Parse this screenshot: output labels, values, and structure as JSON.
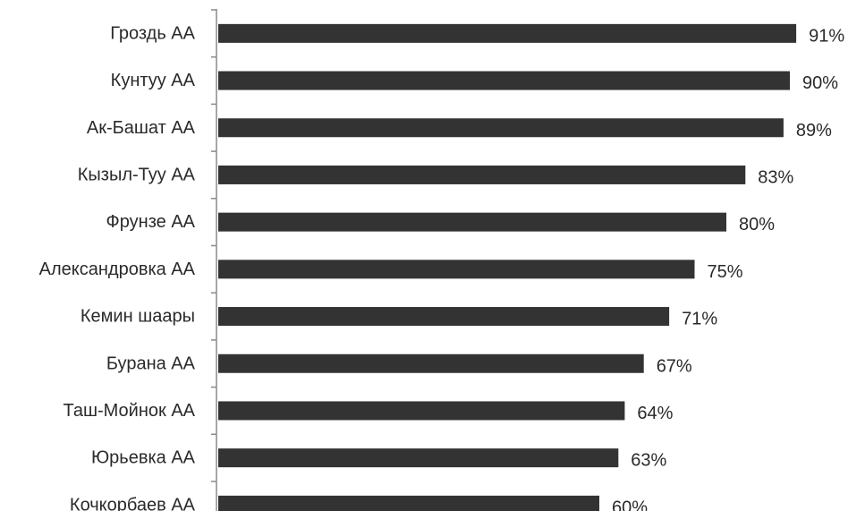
{
  "chart_data": {
    "type": "bar",
    "orientation": "horizontal",
    "categories": [
      "Гроздь АА",
      "Кунтуу АА",
      "Ак-Башат АА",
      "Кызыл-Туу АА",
      "Фрунзе АА",
      "Александровка АА",
      "Кемин шаары",
      "Бурана АА",
      "Таш-Мойнок АА",
      "Юрьевка АА",
      "Кочкорбаев АА"
    ],
    "values": [
      91,
      90,
      89,
      83,
      80,
      75,
      71,
      67,
      64,
      63,
      60
    ],
    "value_labels": [
      "91%",
      "90%",
      "89%",
      "83%",
      "80%",
      "75%",
      "71%",
      "67%",
      "64%",
      "63%",
      "60%"
    ],
    "unit": "%",
    "title": "",
    "xlabel": "",
    "ylabel": "",
    "grid": false,
    "legend": "none",
    "bar_color": "#333333"
  }
}
